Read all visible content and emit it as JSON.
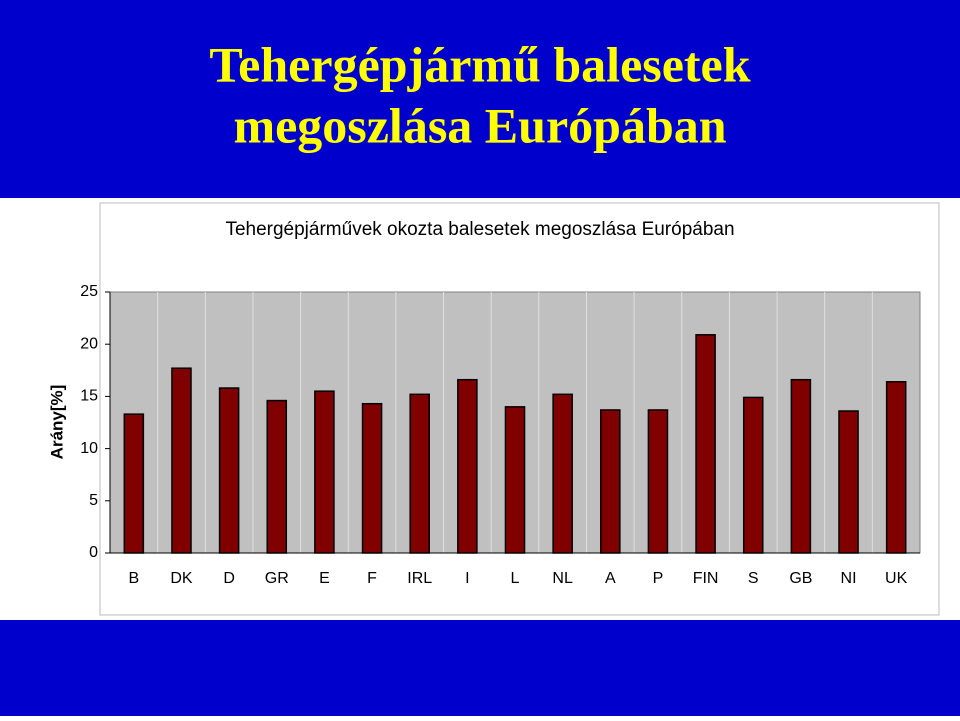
{
  "slide": {
    "title": [
      "Tehergépjármű balesetek",
      "megoszlása Európában"
    ]
  },
  "chart_data": {
    "type": "bar",
    "title": "Tehergépjárművek okozta balesetek megoszlása Európában",
    "y_label": "Arány[%]",
    "categories": [
      "B",
      "DK",
      "D",
      "GR",
      "E",
      "F",
      "IRL",
      "I",
      "L",
      "NL",
      "A",
      "P",
      "FIN",
      "S",
      "GB",
      "NI",
      "UK"
    ],
    "values": [
      13.3,
      17.7,
      15.8,
      14.6,
      15.5,
      14.3,
      15.2,
      16.6,
      14.0,
      15.2,
      13.7,
      13.7,
      20.9,
      14.9,
      16.6,
      13.6,
      16.4
    ],
    "color": "#800000",
    "ylim": [
      0,
      25
    ],
    "yticks": [
      0,
      5,
      10,
      15,
      20,
      25
    ]
  }
}
